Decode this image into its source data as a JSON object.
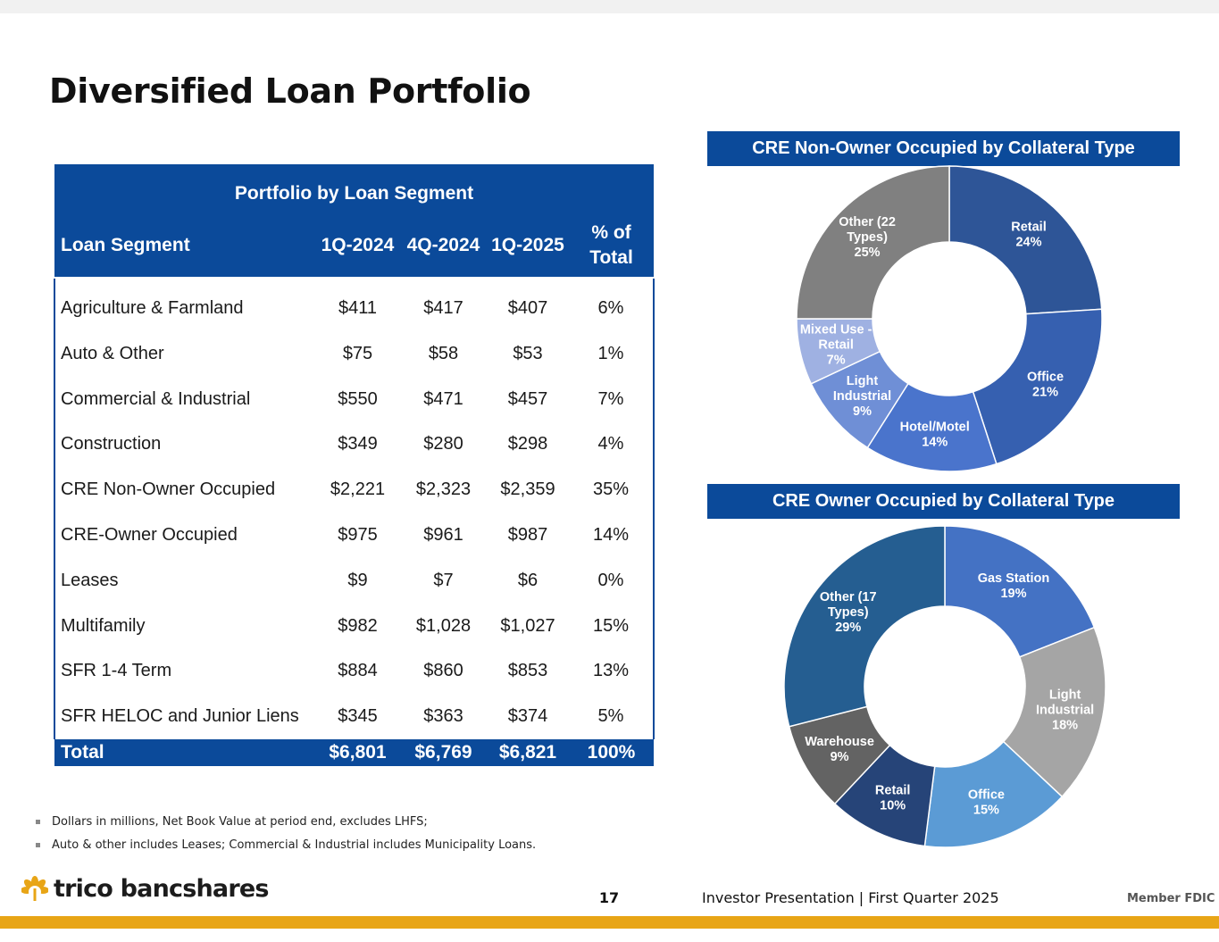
{
  "slide": {
    "title": "Diversified Loan Portfolio",
    "page_number": "17",
    "footer_text": "Investor Presentation  |  First Quarter 2025",
    "member_fdic": "Member FDIC",
    "logo_text": "trico bancshares",
    "logo_icon": "sun-flower-icon",
    "accent_color": "#e8a516",
    "brand_blue": "#0b4a9a"
  },
  "table": {
    "caption": "Portfolio by Loan Segment",
    "headers": {
      "segment": "Loan Segment",
      "q1_2024": "1Q-2024",
      "q4_2024": "4Q-2024",
      "q1_2025": "1Q-2025",
      "pct_line1": "% of",
      "pct_line2": "Total"
    },
    "rows": [
      {
        "segment": "Agriculture & Farmland",
        "q1_2024": "$411",
        "q4_2024": "$417",
        "q1_2025": "$407",
        "pct": "6%"
      },
      {
        "segment": "Auto & Other",
        "q1_2024": "$75",
        "q4_2024": "$58",
        "q1_2025": "$53",
        "pct": "1%"
      },
      {
        "segment": "Commercial & Industrial",
        "q1_2024": "$550",
        "q4_2024": "$471",
        "q1_2025": "$457",
        "pct": "7%"
      },
      {
        "segment": "Construction",
        "q1_2024": "$349",
        "q4_2024": "$280",
        "q1_2025": "$298",
        "pct": "4%"
      },
      {
        "segment": "CRE Non-Owner Occupied",
        "q1_2024": "$2,221",
        "q4_2024": "$2,323",
        "q1_2025": "$2,359",
        "pct": "35%"
      },
      {
        "segment": "CRE-Owner Occupied",
        "q1_2024": "$975",
        "q4_2024": "$961",
        "q1_2025": "$987",
        "pct": "14%"
      },
      {
        "segment": "Leases",
        "q1_2024": "$9",
        "q4_2024": "$7",
        "q1_2025": "$6",
        "pct": "0%"
      },
      {
        "segment": "Multifamily",
        "q1_2024": "$982",
        "q4_2024": "$1,028",
        "q1_2025": "$1,027",
        "pct": "15%"
      },
      {
        "segment": "SFR 1-4 Term",
        "q1_2024": "$884",
        "q4_2024": "$860",
        "q1_2025": "$853",
        "pct": "13%"
      },
      {
        "segment": "SFR HELOC and Junior Liens",
        "q1_2024": "$345",
        "q4_2024": "$363",
        "q1_2025": "$374",
        "pct": "5%"
      }
    ],
    "total": {
      "segment": "Total",
      "q1_2024": "$6,801",
      "q4_2024": "$6,769",
      "q1_2025": "$6,821",
      "pct": "100%"
    }
  },
  "notes": [
    "Dollars in millions, Net Book Value at period end, excludes LHFS;",
    "Auto & other includes Leases; Commercial & Industrial includes Municipality Loans."
  ],
  "chart_data": [
    {
      "type": "pie",
      "donut": true,
      "title": "CRE Non-Owner Occupied by Collateral Type",
      "slices": [
        {
          "label": [
            "Retail",
            "24%"
          ],
          "value": 24,
          "color": "#2e5597"
        },
        {
          "label": [
            "Office",
            "21%"
          ],
          "value": 21,
          "color": "#3660b0"
        },
        {
          "label": [
            "Hotel/Motel",
            "14%"
          ],
          "value": 14,
          "color": "#4a74cc"
        },
        {
          "label": [
            "Light",
            "Industrial",
            "9%"
          ],
          "value": 9,
          "color": "#6f8fd6"
        },
        {
          "label": [
            "Mixed Use -",
            "Retail",
            "7%"
          ],
          "value": 7,
          "color": "#9fb1e2"
        },
        {
          "label": [
            "Other (22",
            "Types)",
            "25%"
          ],
          "value": 25,
          "color": "#808080"
        }
      ]
    },
    {
      "type": "pie",
      "donut": true,
      "title": "CRE Owner Occupied by Collateral Type",
      "slices": [
        {
          "label": [
            "Gas Station",
            "19%"
          ],
          "value": 19,
          "color": "#4472c4"
        },
        {
          "label": [
            "Light",
            "Industrial",
            "18%"
          ],
          "value": 18,
          "color": "#a5a5a5"
        },
        {
          "label": [
            "Office",
            "15%"
          ],
          "value": 15,
          "color": "#5b9bd5"
        },
        {
          "label": [
            "Retail",
            "10%"
          ],
          "value": 10,
          "color": "#264478"
        },
        {
          "label": [
            "Warehouse",
            "9%"
          ],
          "value": 9,
          "color": "#636363"
        },
        {
          "label": [
            "Other (17",
            "Types)",
            "29%"
          ],
          "value": 29,
          "color": "#255e91"
        }
      ]
    }
  ]
}
